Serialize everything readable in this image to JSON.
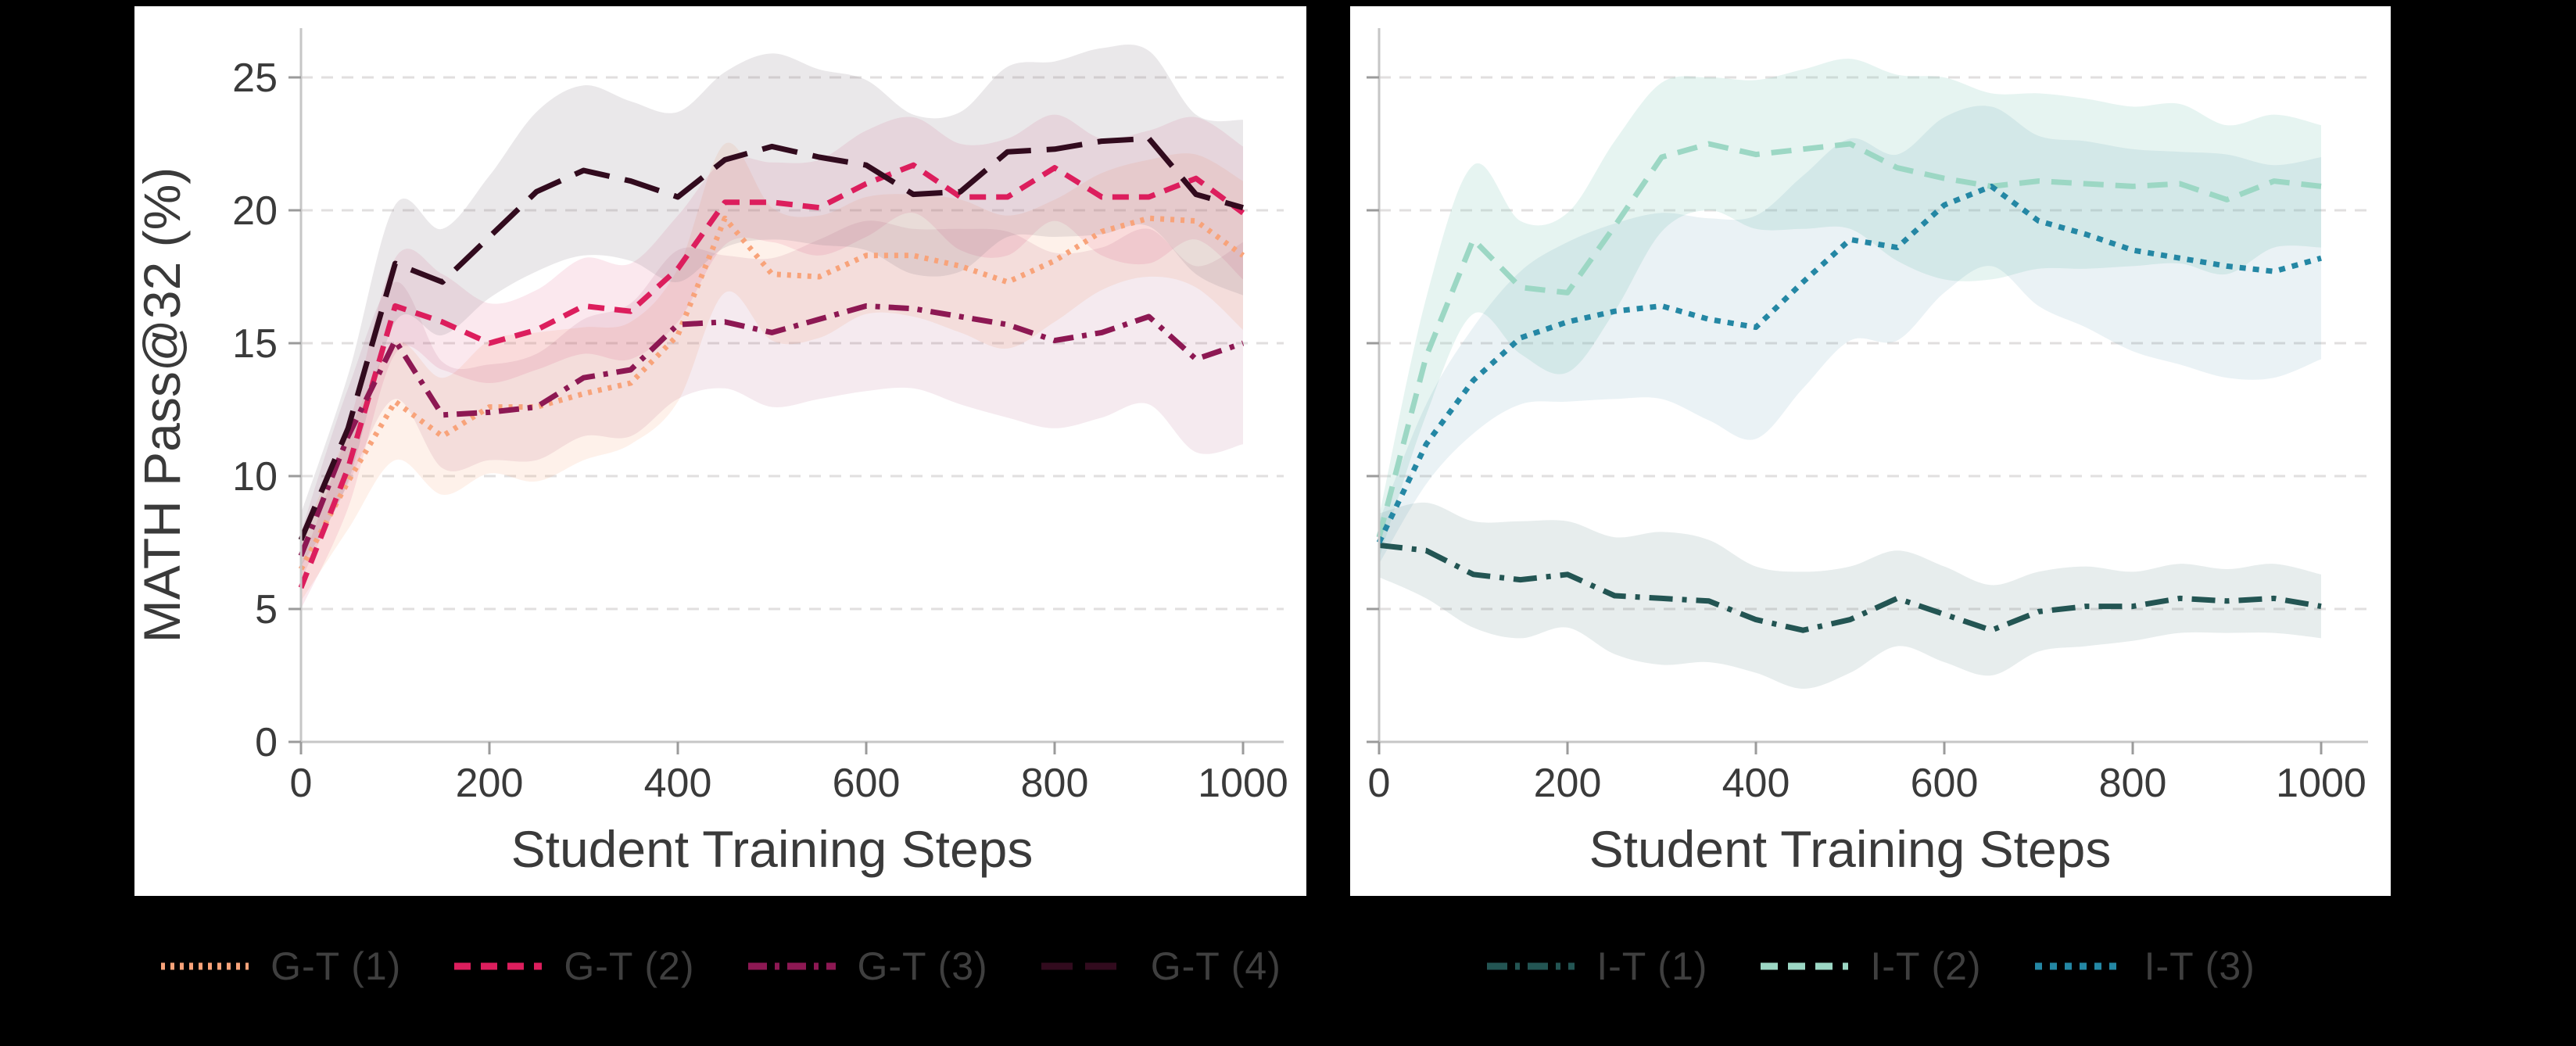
{
  "page": {
    "background_color": "#000000",
    "panel_background_color": "#ffffff",
    "grid_color": "#e1dfdf",
    "axis_color": "#c6c6c6",
    "tick_color": "#9b9b9b",
    "text_color": "#3a3a3a"
  },
  "chart_data": [
    {
      "type": "line",
      "title": "",
      "xlabel": "Student Training Steps",
      "ylabel": "MATH Pass@32 (%)",
      "x_ticks": [
        0,
        200,
        400,
        600,
        800,
        1000
      ],
      "y_ticks": [
        0,
        5,
        10,
        15,
        20,
        25
      ],
      "xlim": [
        0,
        1045
      ],
      "ylim": [
        0,
        27.4
      ],
      "grid": "dashed-horizontal",
      "legend_position": "below-center",
      "x": [
        0,
        50,
        100,
        150,
        200,
        250,
        300,
        350,
        400,
        450,
        500,
        550,
        600,
        650,
        700,
        750,
        800,
        850,
        900,
        950,
        1000
      ],
      "series": [
        {
          "name": "G-T (1)",
          "color": "#f8a37a",
          "line_style": "dotted",
          "dash": "5 8",
          "legend_dash": "5 7",
          "band_color": "rgba(246,166,122,0.16)",
          "values": [
            6.5,
            9.8,
            12.8,
            11.5,
            12.6,
            12.6,
            13.1,
            13.5,
            15.3,
            19.7,
            17.6,
            17.5,
            18.3,
            18.3,
            17.9,
            17.3,
            18.1,
            19.2,
            19.7,
            19.6,
            18.3
          ],
          "band": [
            1.2,
            1.8,
            2.2,
            2.2,
            2.5,
            2.8,
            2.5,
            2.3,
            2.5,
            2.8,
            2.5,
            2.3,
            2.2,
            2.3,
            2.5,
            2.5,
            2.3,
            2.2,
            2.2,
            2.5,
            2.8
          ]
        },
        {
          "name": "G-T (2)",
          "color": "#dc1e5d",
          "line_style": "dashed",
          "dash": "21 13",
          "legend_dash": "21 13",
          "band_color": "rgba(220,30,93,0.10)",
          "values": [
            5.8,
            10.3,
            16.4,
            15.8,
            15.0,
            15.5,
            16.4,
            16.2,
            17.8,
            20.3,
            20.3,
            20.1,
            21.0,
            21.7,
            20.5,
            20.5,
            21.6,
            20.5,
            20.5,
            21.2,
            19.9
          ],
          "band": [
            0.8,
            1.5,
            1.8,
            1.8,
            1.5,
            1.5,
            1.8,
            1.8,
            2.0,
            1.6,
            1.5,
            1.8,
            2.0,
            1.8,
            2.0,
            2.2,
            2.0,
            2.2,
            2.5,
            2.3,
            2.5
          ]
        },
        {
          "name": "G-T (3)",
          "color": "#8d1853",
          "line_style": "dash-dot",
          "dash": "26 11 6 11",
          "legend_dash": "24 10 6 10",
          "band_color": "rgba(141,24,83,0.09)",
          "values": [
            7.0,
            11.5,
            15.1,
            12.3,
            12.4,
            12.6,
            13.7,
            14.0,
            15.7,
            15.8,
            15.4,
            15.9,
            16.4,
            16.3,
            16.0,
            15.7,
            15.1,
            15.4,
            16.0,
            14.4,
            15.0
          ],
          "band": [
            0.9,
            1.8,
            2.2,
            2.0,
            1.8,
            2.0,
            2.2,
            2.5,
            2.8,
            2.5,
            2.8,
            3.0,
            3.2,
            3.0,
            3.3,
            3.5,
            3.3,
            3.2,
            3.3,
            3.5,
            3.8
          ]
        },
        {
          "name": "G-T (4)",
          "color": "#320b1e",
          "line_style": "long-dash",
          "dash": "46 20",
          "legend_dash": "40 16",
          "band_color": "rgba(140,128,140,0.18)",
          "values": [
            7.6,
            11.8,
            18.0,
            17.3,
            19.0,
            20.7,
            21.5,
            21.1,
            20.5,
            21.9,
            22.4,
            22.0,
            21.7,
            20.6,
            20.7,
            22.2,
            22.3,
            22.6,
            22.7,
            20.6,
            20.1
          ],
          "band": [
            1.0,
            2.0,
            2.2,
            2.0,
            2.3,
            3.0,
            3.2,
            3.0,
            3.2,
            3.3,
            3.5,
            3.3,
            3.2,
            3.0,
            3.0,
            3.2,
            3.3,
            3.5,
            3.3,
            3.0,
            3.3
          ]
        }
      ]
    },
    {
      "type": "line",
      "title": "",
      "xlabel": "Student Training Steps",
      "ylabel": "",
      "x_ticks": [
        0,
        200,
        400,
        600,
        800,
        1000
      ],
      "y_ticks": [
        0,
        5,
        10,
        15,
        20,
        25
      ],
      "show_y_tick_labels": false,
      "xlim": [
        0,
        1045
      ],
      "ylim": [
        0,
        27.4
      ],
      "grid": "dashed-horizontal",
      "legend_position": "below-center",
      "x": [
        0,
        50,
        100,
        150,
        200,
        250,
        300,
        350,
        400,
        450,
        500,
        550,
        600,
        650,
        700,
        750,
        800,
        850,
        900,
        950,
        1000
      ],
      "series": [
        {
          "name": "I-T (1)",
          "color": "#235553",
          "line_style": "dash-dot",
          "dash": "30 12 6 12",
          "legend_dash": "26 10 6 10",
          "band_color": "rgba(60,110,110,0.12)",
          "values": [
            7.4,
            7.2,
            6.3,
            6.1,
            6.3,
            5.5,
            5.4,
            5.3,
            4.6,
            4.2,
            4.6,
            5.4,
            4.8,
            4.2,
            4.9,
            5.1,
            5.1,
            5.4,
            5.3,
            5.4,
            5.1
          ],
          "band": [
            1.2,
            1.8,
            2.0,
            2.2,
            2.0,
            2.2,
            2.5,
            2.3,
            2.0,
            2.2,
            2.0,
            1.8,
            1.8,
            1.7,
            1.5,
            1.5,
            1.3,
            1.3,
            1.2,
            1.3,
            1.2
          ]
        },
        {
          "name": "I-T (2)",
          "color": "#9cd7c4",
          "line_style": "dashed",
          "dash": "26 15",
          "legend_dash": "22 13",
          "band_color": "rgba(140,205,190,0.22)",
          "values": [
            7.7,
            14.5,
            18.9,
            17.1,
            16.9,
            19.4,
            22.0,
            22.5,
            22.1,
            22.3,
            22.5,
            21.6,
            21.2,
            20.9,
            21.1,
            21.0,
            20.9,
            21.0,
            20.4,
            21.1,
            20.9
          ],
          "band": [
            0.8,
            2.2,
            2.8,
            2.5,
            3.0,
            3.2,
            2.8,
            2.5,
            2.8,
            3.0,
            3.2,
            3.5,
            3.8,
            3.5,
            3.3,
            3.2,
            3.0,
            3.0,
            2.8,
            2.5,
            2.3
          ]
        },
        {
          "name": "I-T (3)",
          "color": "#2487a4",
          "line_style": "dense-dotted",
          "dash": "8 9",
          "legend_dash": "9 10",
          "band_color": "rgba(60,140,165,0.11)",
          "values": [
            7.5,
            11.2,
            13.6,
            15.2,
            15.8,
            16.2,
            16.4,
            15.9,
            15.6,
            17.3,
            18.9,
            18.6,
            20.2,
            20.9,
            19.6,
            19.1,
            18.5,
            18.2,
            17.9,
            17.7,
            18.2
          ],
          "band": [
            0.8,
            1.5,
            2.0,
            2.5,
            3.0,
            3.3,
            3.5,
            3.8,
            4.2,
            4.0,
            3.8,
            3.5,
            3.3,
            3.0,
            3.2,
            3.5,
            3.8,
            4.0,
            4.2,
            4.0,
            3.8
          ]
        }
      ]
    }
  ]
}
